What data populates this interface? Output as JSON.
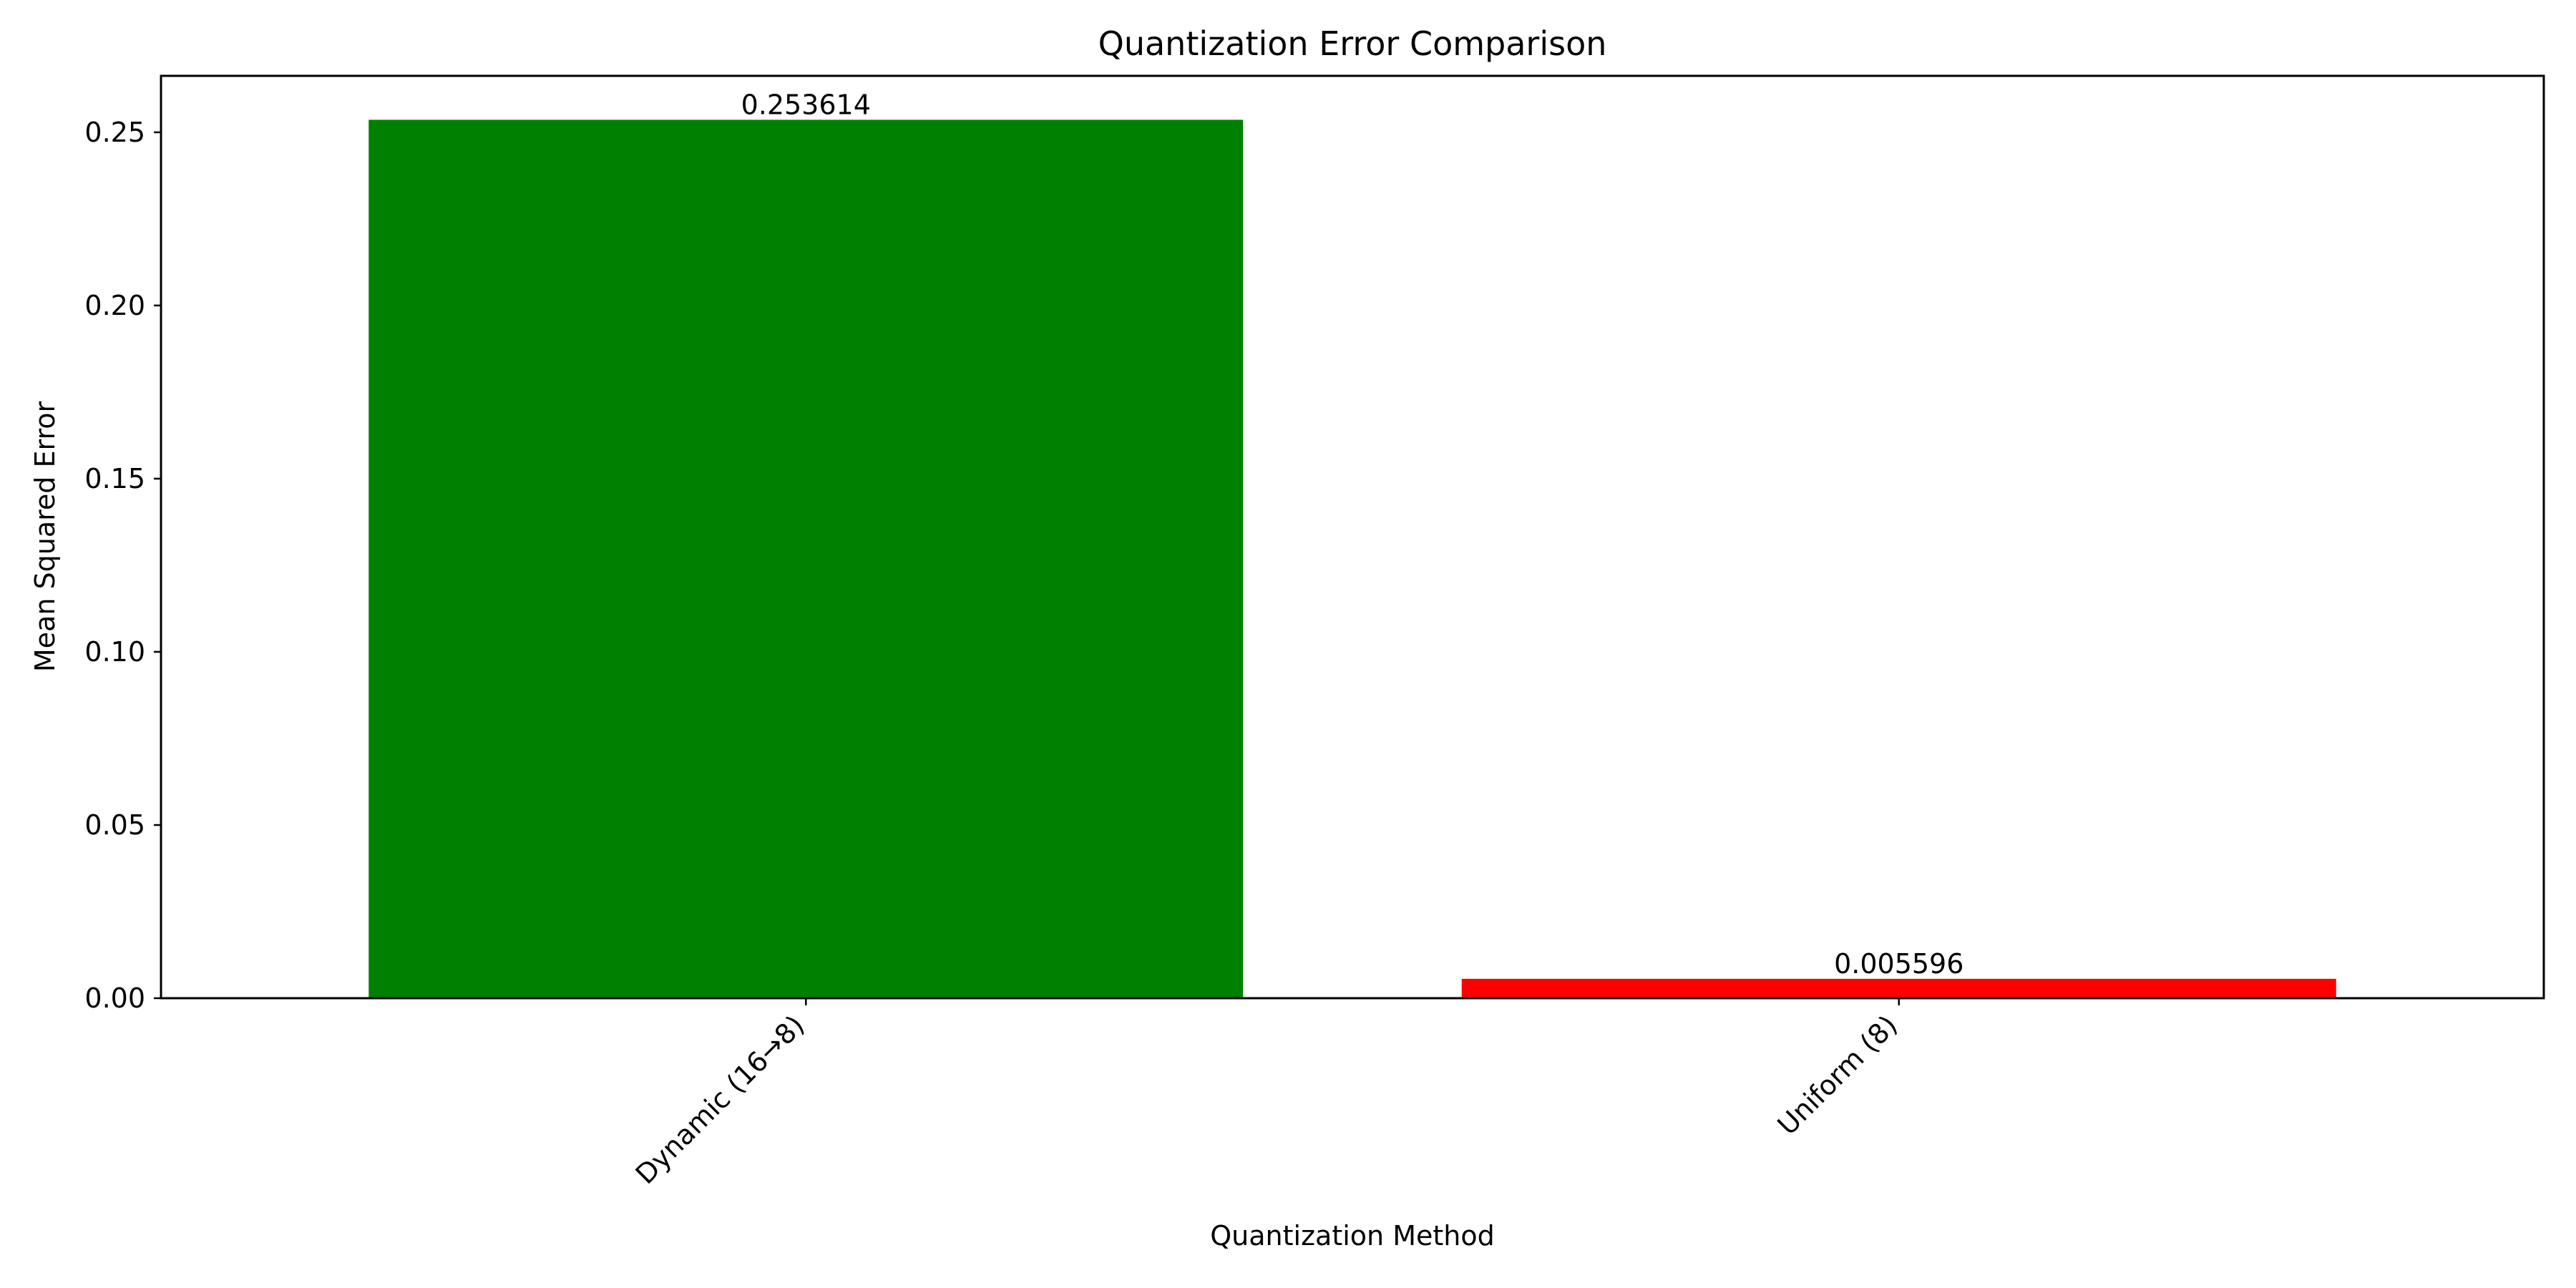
{
  "chart_data": {
    "type": "bar",
    "title": "Quantization Error Comparison",
    "xlabel": "Quantization Method",
    "ylabel": "Mean Squared Error",
    "categories": [
      "Dynamic (16→8)",
      "Uniform (8)"
    ],
    "values": [
      0.253614,
      0.005596
    ],
    "data_labels": [
      "0.253614",
      "0.005596"
    ],
    "colors": [
      "#008000",
      "#ff0000"
    ],
    "ylim": [
      0,
      0.2663
    ],
    "yticks": [
      0.0,
      0.05,
      0.1,
      0.15,
      0.2,
      0.25
    ],
    "ytick_labels": [
      "0.00",
      "0.05",
      "0.10",
      "0.15",
      "0.20",
      "0.25"
    ],
    "grid": false,
    "legend": "none"
  }
}
